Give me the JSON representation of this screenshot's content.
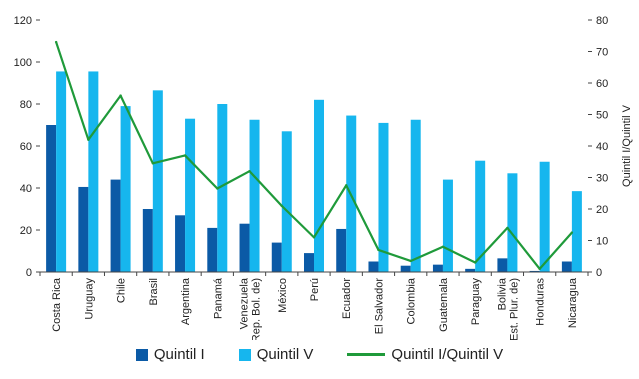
{
  "chart_data": {
    "type": "bar",
    "categories": [
      [
        "Costa Rica"
      ],
      [
        "Uruguay"
      ],
      [
        "Chile"
      ],
      [
        "Brasil"
      ],
      [
        "Argentina"
      ],
      [
        "Panamá"
      ],
      [
        "Venezuela",
        "(Rep. Bol. de)"
      ],
      [
        "México"
      ],
      [
        "Perú"
      ],
      [
        "Ecuador"
      ],
      [
        "El Salvador"
      ],
      [
        "Colombia"
      ],
      [
        "Guatemala"
      ],
      [
        "Paraguay"
      ],
      [
        "Bolivia",
        "(Est. Plur. de)"
      ],
      [
        "Honduras"
      ],
      [
        "Nicaragua"
      ]
    ],
    "series": [
      {
        "name": "Quintil I",
        "type": "bar",
        "axis": "left",
        "color": "#0b5aa6",
        "values": [
          70,
          40.5,
          44,
          30,
          27,
          21,
          23,
          14,
          9,
          20.5,
          5,
          3,
          3.5,
          1.5,
          6.5,
          0.5,
          5
        ]
      },
      {
        "name": "Quintil V",
        "type": "bar",
        "axis": "left",
        "color": "#16b6ee",
        "values": [
          95.5,
          95.5,
          79,
          86.5,
          73,
          80,
          72.5,
          67,
          82,
          74.5,
          71,
          72.5,
          44,
          53,
          47,
          52.5,
          38.5
        ]
      },
      {
        "name": "Quintil I/Quintil V",
        "type": "line",
        "axis": "right",
        "color": "#1f9a3a",
        "values": [
          73,
          42,
          56,
          34.5,
          37,
          26.5,
          32,
          21,
          11,
          27.5,
          7,
          3.5,
          8,
          3,
          14,
          1,
          12.5
        ]
      }
    ],
    "y_left": {
      "min": 0,
      "max": 120,
      "ticks": [
        "0",
        "20",
        "40",
        "60",
        "80",
        "100",
        "120"
      ]
    },
    "y_right": {
      "min": 0,
      "max": 80,
      "ticks": [
        "0",
        "10",
        "20",
        "30",
        "40",
        "50",
        "60",
        "70",
        "80"
      ],
      "label": "Quintil I/Quintil V"
    },
    "grid": false,
    "legend_position": "bottom"
  }
}
